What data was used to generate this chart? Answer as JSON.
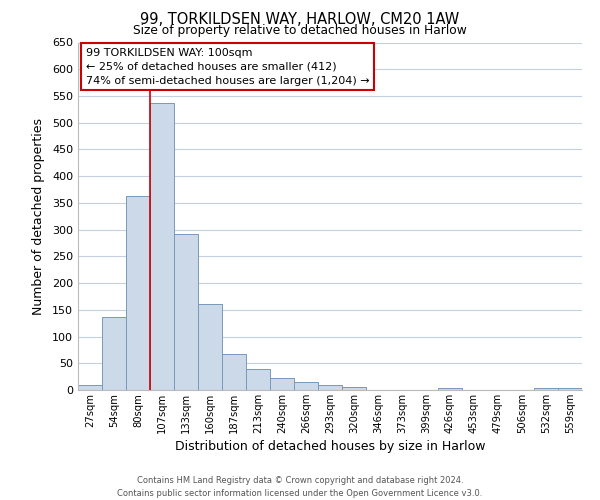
{
  "title": "99, TORKILDSEN WAY, HARLOW, CM20 1AW",
  "subtitle": "Size of property relative to detached houses in Harlow",
  "xlabel": "Distribution of detached houses by size in Harlow",
  "ylabel": "Number of detached properties",
  "bar_labels": [
    "27sqm",
    "54sqm",
    "80sqm",
    "107sqm",
    "133sqm",
    "160sqm",
    "187sqm",
    "213sqm",
    "240sqm",
    "266sqm",
    "293sqm",
    "320sqm",
    "346sqm",
    "373sqm",
    "399sqm",
    "426sqm",
    "453sqm",
    "479sqm",
    "506sqm",
    "532sqm",
    "559sqm"
  ],
  "bar_values": [
    10,
    137,
    362,
    537,
    292,
    160,
    67,
    40,
    22,
    15,
    9,
    5,
    0,
    0,
    0,
    4,
    0,
    0,
    0,
    4,
    3
  ],
  "bar_color": "#ccd9e8",
  "bar_edgecolor": "#7799bb",
  "ylim": [
    0,
    650
  ],
  "yticks": [
    0,
    50,
    100,
    150,
    200,
    250,
    300,
    350,
    400,
    450,
    500,
    550,
    600,
    650
  ],
  "vline_x_index": 3,
  "vline_color": "#cc0000",
  "annotation_title": "99 TORKILDSEN WAY: 100sqm",
  "annotation_line1": "← 25% of detached houses are smaller (412)",
  "annotation_line2": "74% of semi-detached houses are larger (1,204) →",
  "annotation_box_facecolor": "#ffffff",
  "annotation_box_edgecolor": "#cc0000",
  "footer_line1": "Contains HM Land Registry data © Crown copyright and database right 2024.",
  "footer_line2": "Contains public sector information licensed under the Open Government Licence v3.0.",
  "background_color": "#ffffff",
  "grid_color": "#c5d0de"
}
